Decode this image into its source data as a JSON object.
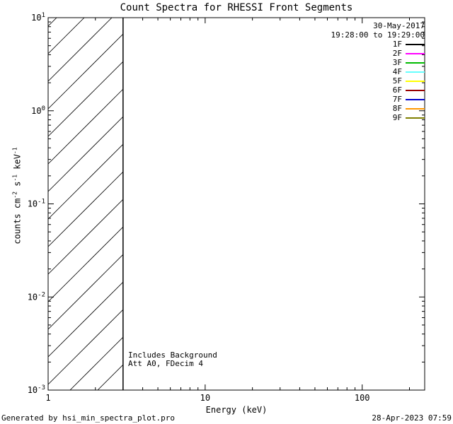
{
  "page": {
    "background": "#ffffff",
    "text_color": "#000000"
  },
  "title": "Count Spectra for RHESSI Front Segments",
  "footer": {
    "left": "Generated by hsi_min_spectra_plot.pro",
    "right": "28-Apr-2023 07:59"
  },
  "chart_data": {
    "type": "line",
    "title": "Count Spectra for RHESSI Front Segments",
    "xlabel": "Energy (keV)",
    "ylabel": "counts cm^-2 s^-1 keV^-1",
    "ylabel_parts": [
      {
        "text": "counts cm"
      },
      {
        "sup": "-2"
      },
      {
        "text": " s"
      },
      {
        "sup": "-1"
      },
      {
        "text": " keV"
      },
      {
        "sup": "-1"
      }
    ],
    "xscale": "log",
    "yscale": "log",
    "xlim": [
      1,
      250
    ],
    "ylim": [
      0.001,
      10
    ],
    "x_major_ticks": [
      1,
      10,
      100
    ],
    "x_major_tick_labels": [
      "1",
      "10",
      "100"
    ],
    "y_major_ticks": [
      0.001,
      0.01,
      0.1,
      1,
      10
    ],
    "y_major_tick_labels": [
      "10^-3",
      "10^-2",
      "10^-1",
      "10^0",
      "10^1"
    ],
    "grid": false,
    "series": [],
    "background_hatch_region": {
      "x_start": 1,
      "x_end": 3,
      "y_start": 0.001,
      "y_end": 10,
      "pattern": "diagonal-45deg",
      "note_boundary": "solid vertical line at x_end"
    },
    "annotations": [
      "Includes Background",
      "Att A0, FDecim 4"
    ],
    "legend": {
      "position": "top-right",
      "date": "30-May-2017",
      "time_range": "19:28:00 to 19:29:00",
      "entries": [
        {
          "label": "1F",
          "color": "#000000"
        },
        {
          "label": "2F",
          "color": "#ff00ff"
        },
        {
          "label": "3F",
          "color": "#00bb00"
        },
        {
          "label": "4F",
          "color": "#66ffff"
        },
        {
          "label": "5F",
          "color": "#ffff00"
        },
        {
          "label": "6F",
          "color": "#990000"
        },
        {
          "label": "7F",
          "color": "#0000cc"
        },
        {
          "label": "8F",
          "color": "#ff9900"
        },
        {
          "label": "9F",
          "color": "#808000"
        }
      ]
    }
  }
}
